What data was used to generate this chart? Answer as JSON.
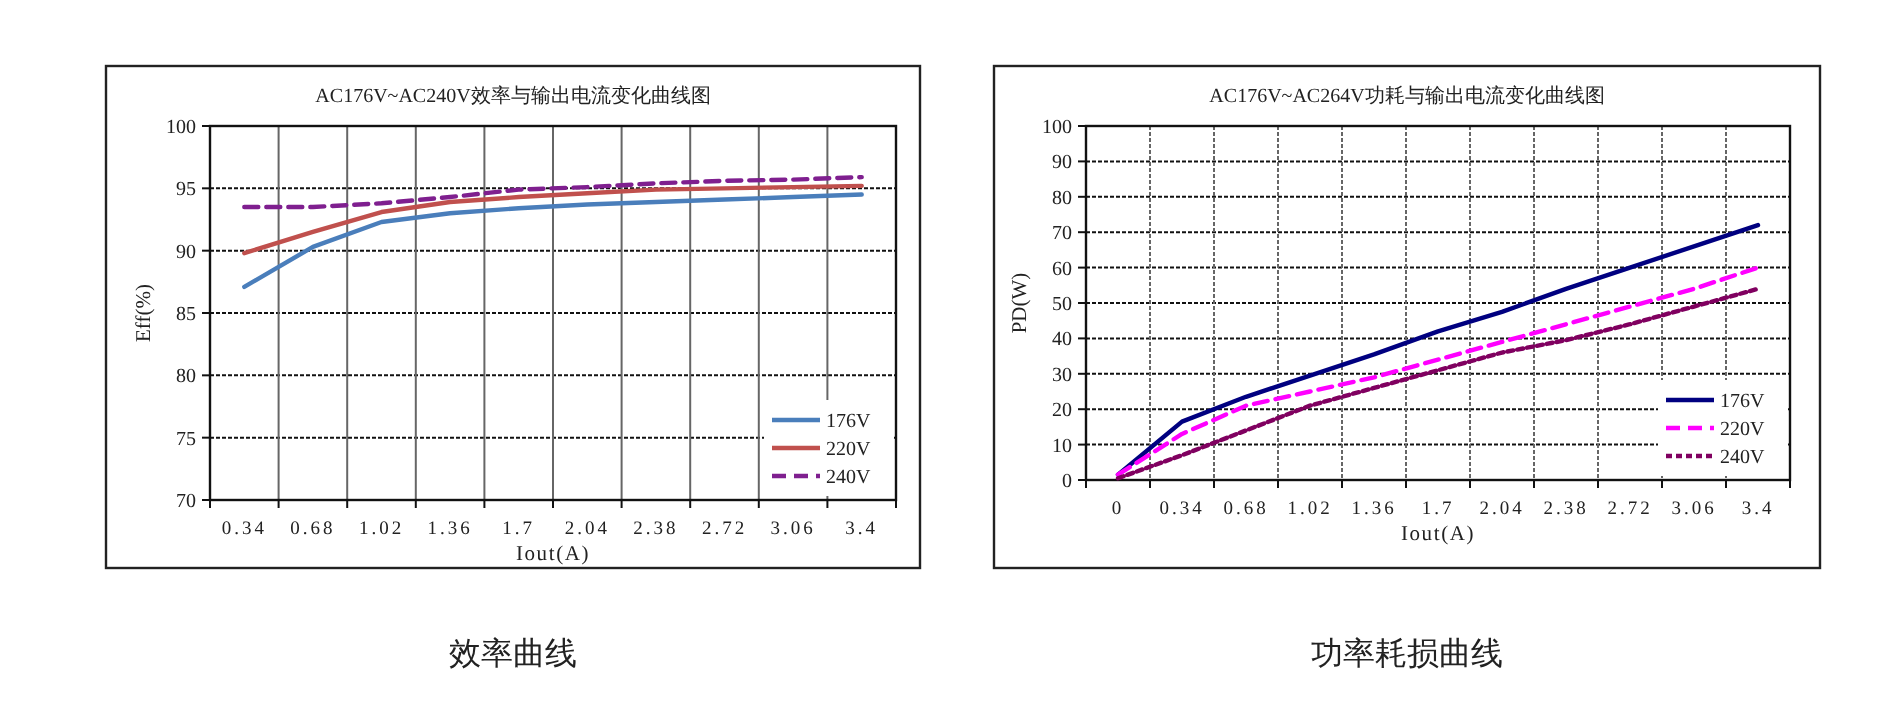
{
  "chart_data": [
    {
      "type": "line",
      "title": "AC176V~AC240V效率与输出电流变化曲线图",
      "xlabel": "Iout(A)",
      "ylabel": "Eff(%)",
      "categories": [
        "0.34",
        "0.68",
        "1.02",
        "1.36",
        "1.7",
        "2.04",
        "2.38",
        "2.72",
        "3.06",
        "3.4"
      ],
      "ylim": [
        70,
        100
      ],
      "yticks": [
        70,
        75,
        80,
        85,
        90,
        95,
        100
      ],
      "grid": true,
      "legend": "bottom right",
      "annotations": [
        "效率曲线"
      ],
      "series": [
        {
          "name": "176V",
          "color": "#4a7ebb",
          "line_style": "solid",
          "values": [
            87.1,
            90.3,
            92.3,
            93.0,
            93.4,
            93.7,
            93.9,
            94.1,
            94.3,
            94.5
          ]
        },
        {
          "name": "220V",
          "color": "#c0504d",
          "line_style": "solid",
          "values": [
            89.8,
            91.5,
            93.1,
            93.9,
            94.3,
            94.6,
            94.9,
            95.0,
            95.1,
            95.2
          ]
        },
        {
          "name": "240V",
          "color": "#7f1f8f",
          "line_style": "dashed",
          "values": [
            93.5,
            93.5,
            93.8,
            94.3,
            94.9,
            95.1,
            95.4,
            95.6,
            95.7,
            95.9
          ]
        }
      ]
    },
    {
      "type": "line",
      "title": "AC176V~AC264V功耗与输出电流变化曲线图",
      "xlabel": "Iout(A)",
      "ylabel": "PD(W)",
      "categories": [
        "0",
        "0.34",
        "0.68",
        "1.02",
        "1.36",
        "1.7",
        "2.04",
        "2.38",
        "2.72",
        "3.06",
        "3.4"
      ],
      "ylim": [
        0,
        100
      ],
      "yticks": [
        0,
        10,
        20,
        30,
        40,
        50,
        60,
        70,
        80,
        90,
        100
      ],
      "grid": true,
      "legend": "bottom right",
      "annotations": [
        "功率耗损曲线"
      ],
      "series": [
        {
          "name": "176V",
          "color": "#000080",
          "line_style": "solid",
          "values": [
            1.5,
            16.5,
            23.5,
            29.5,
            35.5,
            42,
            47.5,
            54,
            60,
            66,
            72
          ]
        },
        {
          "name": "220V",
          "color": "#ff00ff",
          "line_style": "dashed",
          "values": [
            1.5,
            13,
            21,
            25,
            29,
            34,
            39,
            44,
            49,
            54,
            60
          ]
        },
        {
          "name": "240V",
          "color": "#800060",
          "line_style": "dotted",
          "values": [
            0.5,
            7,
            14,
            21,
            26,
            31,
            36,
            39.5,
            44,
            49,
            54
          ]
        }
      ]
    }
  ]
}
